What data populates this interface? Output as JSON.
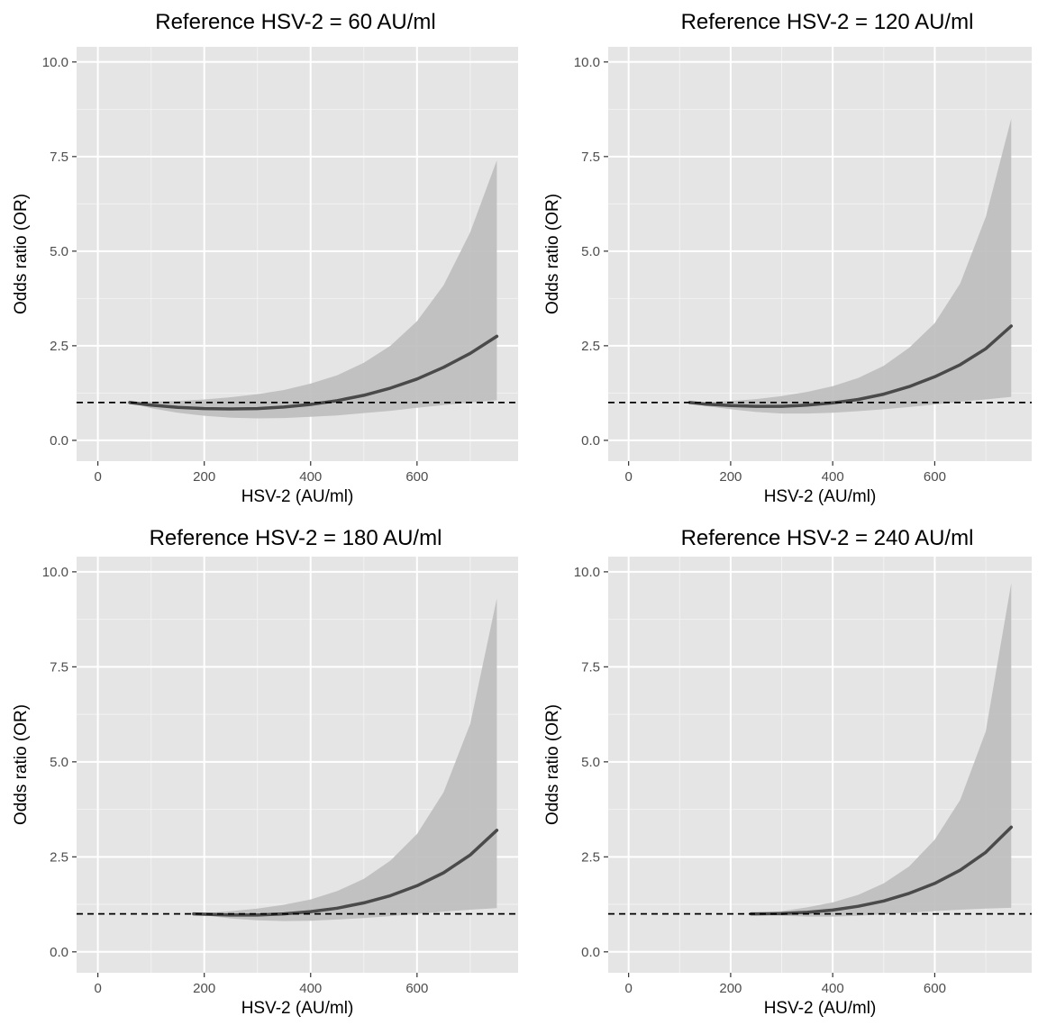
{
  "chart_data": [
    {
      "type": "line",
      "title": "Reference HSV-2 = 60 AU/ml",
      "xlabel": "HSV-2 (AU/ml)",
      "ylabel": "Odds ratio (OR)",
      "xlim": [
        -40,
        790
      ],
      "ylim": [
        -0.55,
        10.4
      ],
      "xticks": [
        0,
        200,
        400,
        600
      ],
      "xtick_labels": [
        "0",
        "200",
        "400",
        "600"
      ],
      "yticks": [
        0,
        2.5,
        5,
        7.5,
        10
      ],
      "ytick_labels": [
        "0.0",
        "2.5",
        "5.0",
        "7.5",
        "10.0"
      ],
      "reference_line": 1,
      "grid": true,
      "series": [
        {
          "x": [
            60,
            100,
            150,
            200,
            250,
            300,
            350,
            400,
            450,
            500,
            550,
            600,
            650,
            700,
            750
          ],
          "y": [
            1.0,
            0.93,
            0.87,
            0.84,
            0.83,
            0.84,
            0.88,
            0.95,
            1.05,
            1.19,
            1.38,
            1.62,
            1.93,
            2.3,
            2.75
          ],
          "lower": [
            1.0,
            0.85,
            0.73,
            0.65,
            0.6,
            0.58,
            0.59,
            0.62,
            0.66,
            0.72,
            0.78,
            0.86,
            0.93,
            1.0,
            1.06
          ],
          "upper": [
            1.0,
            1.02,
            1.04,
            1.08,
            1.14,
            1.22,
            1.33,
            1.5,
            1.72,
            2.05,
            2.5,
            3.15,
            4.1,
            5.5,
            7.4
          ]
        }
      ]
    },
    {
      "type": "line",
      "title": "Reference HSV-2 = 120 AU/ml",
      "xlabel": "HSV-2 (AU/ml)",
      "ylabel": "Odds ratio (OR)",
      "xlim": [
        -40,
        790
      ],
      "ylim": [
        -0.55,
        10.4
      ],
      "xticks": [
        0,
        200,
        400,
        600
      ],
      "xtick_labels": [
        "0",
        "200",
        "400",
        "600"
      ],
      "yticks": [
        0,
        2.5,
        5,
        7.5,
        10
      ],
      "ytick_labels": [
        "0.0",
        "2.5",
        "5.0",
        "7.5",
        "10.0"
      ],
      "reference_line": 1,
      "grid": true,
      "series": [
        {
          "x": [
            120,
            150,
            200,
            250,
            300,
            350,
            400,
            450,
            500,
            550,
            600,
            650,
            700,
            750
          ],
          "y": [
            1.0,
            0.96,
            0.92,
            0.9,
            0.9,
            0.93,
            0.99,
            1.08,
            1.22,
            1.42,
            1.68,
            2.0,
            2.42,
            3.02
          ],
          "lower": [
            1.0,
            0.91,
            0.82,
            0.75,
            0.71,
            0.71,
            0.73,
            0.77,
            0.82,
            0.88,
            0.95,
            1.02,
            1.08,
            1.15
          ],
          "upper": [
            1.0,
            1.01,
            1.04,
            1.09,
            1.17,
            1.28,
            1.43,
            1.65,
            1.97,
            2.45,
            3.1,
            4.15,
            5.9,
            8.5
          ]
        }
      ]
    },
    {
      "type": "line",
      "title": "Reference HSV-2 = 180 AU/ml",
      "xlabel": "HSV-2 (AU/ml)",
      "ylabel": "Odds ratio (OR)",
      "xlim": [
        -40,
        790
      ],
      "ylim": [
        -0.55,
        10.4
      ],
      "xticks": [
        0,
        200,
        400,
        600
      ],
      "xtick_labels": [
        "0",
        "200",
        "400",
        "600"
      ],
      "yticks": [
        0,
        2.5,
        5,
        7.5,
        10
      ],
      "ytick_labels": [
        "0.0",
        "2.5",
        "5.0",
        "7.5",
        "10.0"
      ],
      "reference_line": 1,
      "grid": true,
      "series": [
        {
          "x": [
            180,
            200,
            250,
            300,
            350,
            400,
            450,
            500,
            550,
            600,
            650,
            700,
            750
          ],
          "y": [
            1.0,
            0.99,
            0.97,
            0.97,
            1.0,
            1.06,
            1.15,
            1.29,
            1.48,
            1.74,
            2.08,
            2.55,
            3.2
          ],
          "lower": [
            1.0,
            0.96,
            0.88,
            0.83,
            0.81,
            0.82,
            0.85,
            0.89,
            0.94,
            1.0,
            1.06,
            1.11,
            1.15
          ],
          "upper": [
            1.0,
            1.02,
            1.07,
            1.14,
            1.24,
            1.38,
            1.6,
            1.92,
            2.4,
            3.1,
            4.2,
            6.0,
            9.3
          ]
        }
      ]
    },
    {
      "type": "line",
      "title": "Reference HSV-2 = 240 AU/ml",
      "xlabel": "HSV-2 (AU/ml)",
      "ylabel": "Odds ratio (OR)",
      "xlim": [
        -40,
        790
      ],
      "ylim": [
        -0.55,
        10.4
      ],
      "xticks": [
        0,
        200,
        400,
        600
      ],
      "xtick_labels": [
        "0",
        "200",
        "400",
        "600"
      ],
      "yticks": [
        0,
        2.5,
        5,
        7.5,
        10
      ],
      "ytick_labels": [
        "0.0",
        "2.5",
        "5.0",
        "7.5",
        "10.0"
      ],
      "reference_line": 1,
      "grid": true,
      "series": [
        {
          "x": [
            240,
            250,
            300,
            350,
            400,
            450,
            500,
            550,
            600,
            650,
            700,
            750
          ],
          "y": [
            1.0,
            1.0,
            1.01,
            1.04,
            1.1,
            1.2,
            1.34,
            1.54,
            1.8,
            2.15,
            2.62,
            3.28
          ],
          "lower": [
            1.0,
            0.99,
            0.95,
            0.93,
            0.93,
            0.95,
            0.99,
            1.03,
            1.07,
            1.11,
            1.14,
            1.16
          ],
          "upper": [
            1.0,
            1.01,
            1.07,
            1.17,
            1.3,
            1.5,
            1.8,
            2.25,
            2.95,
            4.0,
            5.8,
            9.7
          ]
        }
      ]
    }
  ]
}
